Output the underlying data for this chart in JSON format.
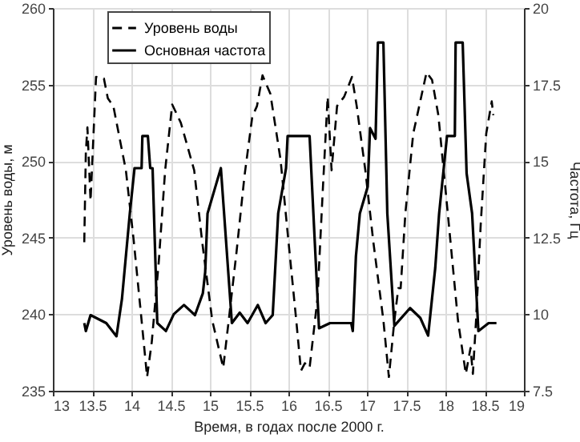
{
  "chart_data": {
    "type": "line",
    "xlabel": "Время, в годах после 2000 г.",
    "ylabel": "Уровень воды, м",
    "y2label": "Частота, Гц",
    "xlim": [
      13,
      19
    ],
    "xticks": [
      13,
      13.5,
      14,
      14.5,
      15,
      15.5,
      16,
      16.5,
      17,
      17.5,
      18,
      18.5,
      19
    ],
    "ylim": [
      235,
      260
    ],
    "yticks": [
      235,
      240,
      245,
      250,
      255,
      260
    ],
    "y2lim": [
      7.5,
      20
    ],
    "y2ticks": [
      7.5,
      10,
      12.5,
      15,
      17.5,
      20
    ],
    "grid": true,
    "legend": "top left",
    "series": [
      {
        "name": "Уровень воды",
        "color": "#000000",
        "line_style": "dashed",
        "x": [
          13.4,
          13.42,
          13.44,
          13.48,
          13.55,
          13.65,
          13.7,
          13.77,
          13.93,
          14.03,
          14.13,
          14.2,
          14.26,
          14.35,
          14.43,
          14.52,
          14.63,
          14.8,
          14.9,
          15.03,
          15.17,
          15.24,
          15.34,
          15.44,
          15.54,
          15.6,
          15.67,
          15.77,
          15.9,
          16.0,
          16.1,
          16.16,
          16.21,
          16.27,
          16.37,
          16.44,
          16.5,
          16.55,
          16.62,
          16.71,
          16.81,
          16.87,
          16.98,
          17.08,
          17.21,
          17.28,
          17.35,
          17.4,
          17.43,
          17.49,
          17.59,
          17.76,
          17.83,
          17.91,
          18.03,
          18.16,
          18.26,
          18.32,
          18.35,
          18.39,
          18.45,
          18.52,
          18.59,
          18.61
        ],
        "values": [
          244.7,
          250.6,
          252.2,
          247.4,
          255.5,
          255.4,
          254.1,
          253.6,
          249.4,
          244.8,
          239.6,
          235.9,
          238.2,
          243.5,
          249.4,
          253.7,
          252.5,
          249.4,
          244.8,
          239.6,
          236.5,
          239.6,
          244.1,
          249,
          252.9,
          253.6,
          255.6,
          254.4,
          250.1,
          244.8,
          239.6,
          236.3,
          236.8,
          236.5,
          241,
          248.3,
          254.2,
          249.4,
          253.6,
          254.2,
          255.5,
          253.6,
          249.4,
          244.8,
          239.6,
          235.9,
          239.6,
          241.7,
          241.7,
          246.6,
          251.8,
          255.8,
          255.3,
          253,
          246.6,
          239.6,
          236.1,
          237.8,
          236.1,
          239.6,
          245.9,
          251.8,
          253.9,
          253
        ]
      },
      {
        "name": "Основная частота",
        "color": "#000000",
        "line_style": "solid",
        "axis": "y2",
        "x": [
          13.4,
          13.42,
          13.48,
          13.68,
          13.81,
          13.88,
          13.98,
          14.04,
          14.13,
          14.14,
          14.21,
          14.24,
          14.27,
          14.33,
          14.44,
          14.54,
          14.67,
          14.81,
          14.91,
          14.94,
          14.97,
          15.08,
          15.14,
          15.28,
          15.38,
          15.48,
          15.61,
          15.71,
          15.8,
          15.87,
          15.97,
          15.99,
          16.2,
          16.27,
          16.39,
          16.53,
          16.8,
          16.82,
          16.86,
          16.91,
          17.01,
          17.04,
          17.11,
          17.14,
          17.21,
          17.26,
          17.35,
          17.55,
          17.68,
          17.78,
          17.87,
          17.92,
          17.98,
          18.02,
          18.12,
          18.13,
          18.22,
          18.27,
          18.34,
          18.42,
          18.55,
          18.65
        ],
        "values": [
          9.71,
          9.45,
          9.97,
          9.71,
          9.28,
          10.5,
          13.29,
          14.77,
          14.77,
          15.82,
          15.82,
          14.77,
          14.77,
          9.71,
          9.45,
          10.0,
          10.3,
          9.97,
          10.68,
          11.37,
          13.29,
          14.25,
          14.77,
          9.71,
          10.05,
          9.71,
          10.3,
          9.71,
          9.97,
          13.29,
          14.77,
          15.82,
          15.82,
          15.82,
          9.54,
          9.71,
          9.71,
          9.45,
          11.89,
          13.29,
          14.16,
          16.08,
          15.73,
          18.87,
          18.87,
          13.29,
          9.62,
          10.2,
          9.88,
          9.3,
          11.5,
          13.29,
          14.8,
          15.82,
          15.82,
          18.87,
          18.87,
          14.6,
          13.29,
          9.45,
          9.71,
          9.71
        ]
      }
    ]
  }
}
